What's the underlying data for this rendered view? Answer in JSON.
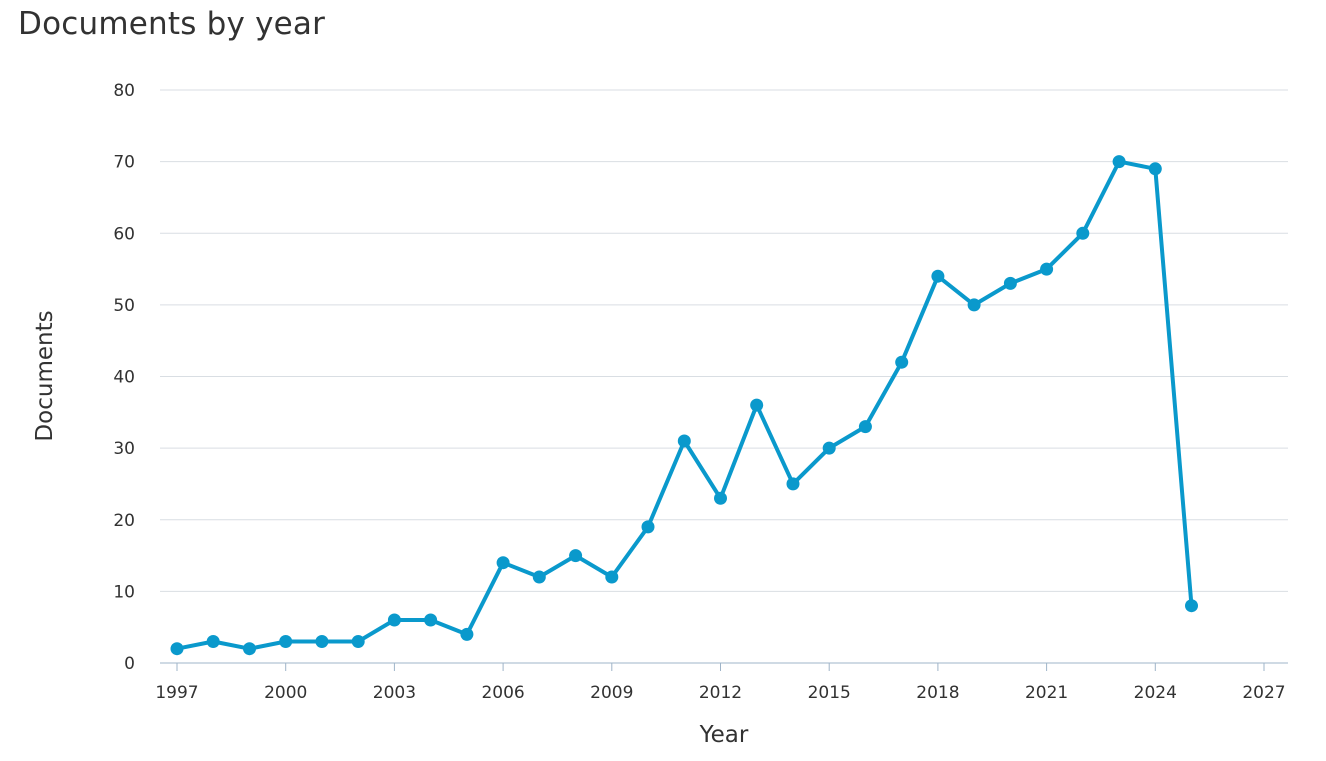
{
  "chart_data": {
    "type": "line",
    "title": "Documents by year",
    "xlabel": "Year",
    "ylabel": "Documents",
    "xlim": [
      1997,
      2027
    ],
    "ylim": [
      0,
      80
    ],
    "xticks": [
      1997,
      2000,
      2003,
      2006,
      2009,
      2012,
      2015,
      2018,
      2021,
      2024,
      2027
    ],
    "yticks": [
      0,
      10,
      20,
      30,
      40,
      50,
      60,
      70,
      80
    ],
    "grid": "horizontal",
    "legend": "none",
    "series": [
      {
        "x": [
          1997,
          1998,
          1999,
          2000,
          2001,
          2002,
          2003,
          2004,
          2005,
          2006,
          2007,
          2008,
          2009,
          2010,
          2011,
          2012,
          2013,
          2014,
          2015,
          2016,
          2017,
          2018,
          2019,
          2020,
          2021,
          2022,
          2023,
          2024,
          2025
        ],
        "values": [
          2,
          3,
          2,
          3,
          3,
          3,
          6,
          6,
          4,
          14,
          12,
          15,
          12,
          19,
          31,
          23,
          36,
          25,
          30,
          33,
          42,
          54,
          50,
          53,
          55,
          60,
          70,
          69,
          8
        ]
      }
    ]
  },
  "colors": {
    "line": "#0a99cc",
    "grid": "#d9dee3",
    "axis": "#9fb4c8",
    "text": "#323232"
  }
}
